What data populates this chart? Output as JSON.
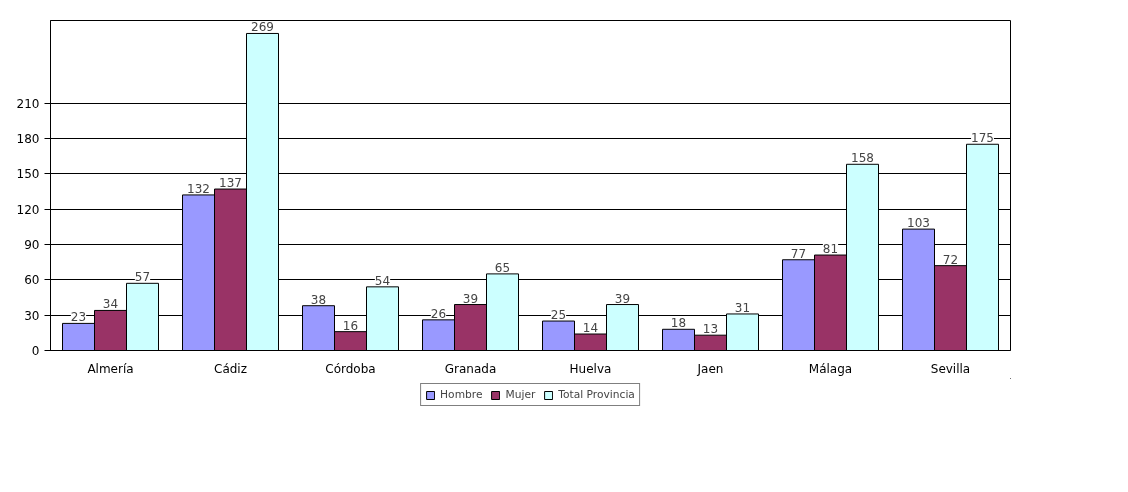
{
  "chart_data": {
    "type": "bar",
    "categories": [
      "Almería",
      "Cádiz",
      "Córdoba",
      "Granada",
      "Huelva",
      "Jaen",
      "Málaga",
      "Sevilla"
    ],
    "series": [
      {
        "name": "Hombre",
        "color": "#9999ff",
        "values": [
          23,
          132,
          38,
          26,
          25,
          18,
          77,
          103
        ]
      },
      {
        "name": "Mujer",
        "color": "#993366",
        "values": [
          34,
          137,
          16,
          39,
          14,
          13,
          81,
          72
        ]
      },
      {
        "name": "Total Provincia",
        "color": "#ccffff",
        "values": [
          57,
          269,
          54,
          65,
          39,
          31,
          158,
          175
        ]
      }
    ],
    "ylim": [
      0,
      280
    ],
    "yticks": [
      0,
      30,
      60,
      90,
      120,
      150,
      180,
      210
    ],
    "grid": "y",
    "legend": "bottom",
    "data_labels": true
  }
}
